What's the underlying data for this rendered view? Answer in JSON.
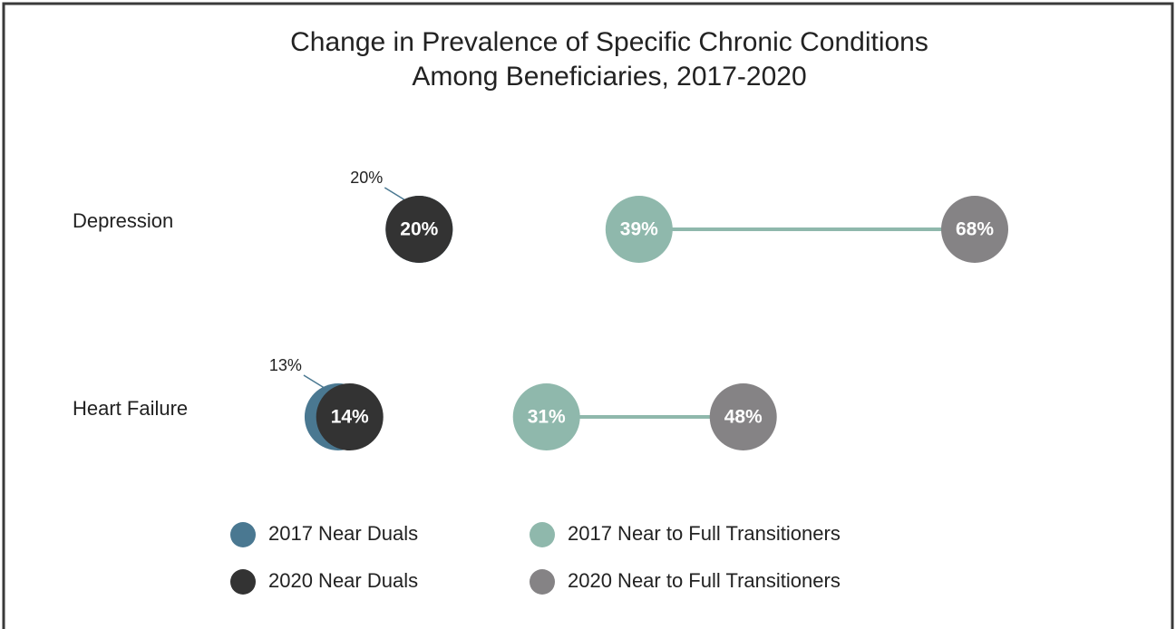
{
  "chart_data": {
    "type": "dumbbell",
    "title": [
      "Change in Prevalence of Specific Chronic Conditions",
      "Among Beneficiaries, 2017-2020"
    ],
    "categories": [
      "Depression",
      "Heart Failure"
    ],
    "series": [
      {
        "name": "2017 Near Duals",
        "color": "#4a7891",
        "values": [
          20,
          13
        ],
        "value_labels": [
          "20%",
          "13%"
        ]
      },
      {
        "name": "2020 Near Duals",
        "color": "#333333",
        "values": [
          20,
          14
        ],
        "value_labels": [
          "20%",
          "14%"
        ]
      },
      {
        "name": "2017 Near to Full Transitioners",
        "color": "#8fb8ac",
        "values": [
          39,
          31
        ],
        "value_labels": [
          "39%",
          "31%"
        ]
      },
      {
        "name": "2020 Near to Full Transitioners",
        "color": "#858385",
        "values": [
          68,
          48
        ],
        "value_labels": [
          "68%",
          "48%"
        ]
      }
    ],
    "xlim": [
      0,
      85
    ]
  }
}
